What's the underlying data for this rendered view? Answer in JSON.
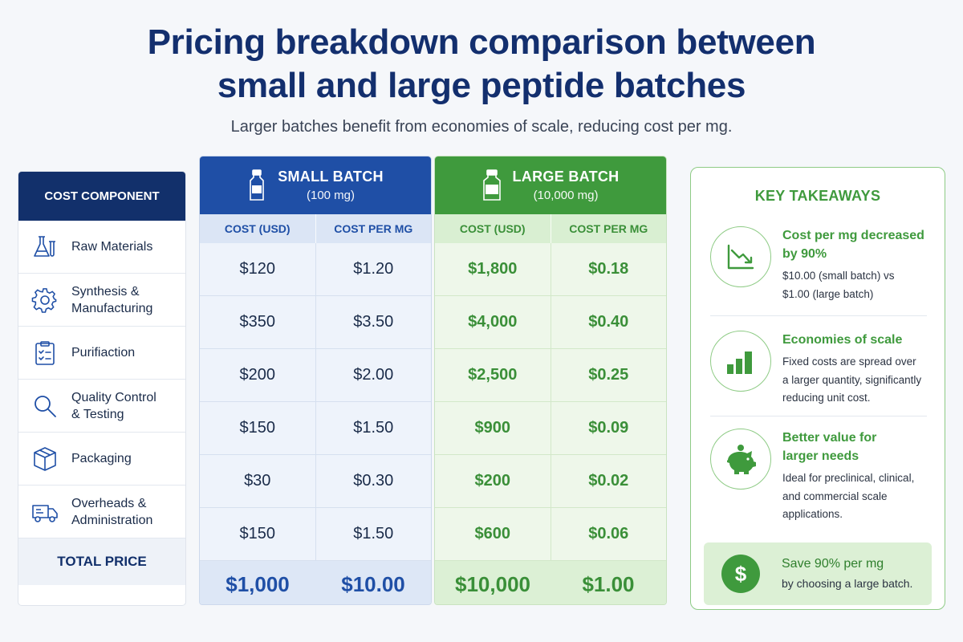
{
  "title_line1": "Pricing breakdown comparison between",
  "title_line2": "small and large peptide batches",
  "subtitle": "Larger batches benefit from economies of scale, reducing cost per mg.",
  "components": {
    "header": "COST COMPONENT",
    "items": [
      {
        "label": "Raw Materials",
        "icon": "flask-icon"
      },
      {
        "label": "Synthesis &\nManufacturing",
        "icon": "gear-icon"
      },
      {
        "label": "Purifiaction",
        "icon": "clipboard-check-icon"
      },
      {
        "label": "Quality Control\n& Testing",
        "icon": "magnifier-icon"
      },
      {
        "label": "Packaging",
        "icon": "box-icon"
      },
      {
        "label": "Overheads &\nAdministration",
        "icon": "truck-icon"
      }
    ],
    "total_label": "TOTAL PRICE"
  },
  "small_batch": {
    "name": "SMALL BATCH",
    "qty": "(100 mg)",
    "col_cost": "COST (USD)",
    "col_per_mg": "COST PER MG",
    "rows": [
      {
        "cost": "$120",
        "per_mg": "$1.20"
      },
      {
        "cost": "$350",
        "per_mg": "$3.50"
      },
      {
        "cost": "$200",
        "per_mg": "$2.00"
      },
      {
        "cost": "$150",
        "per_mg": "$1.50"
      },
      {
        "cost": "$30",
        "per_mg": "$0.30"
      },
      {
        "cost": "$150",
        "per_mg": "$1.50"
      }
    ],
    "total_cost": "$1,000",
    "total_per_mg": "$10.00",
    "color": "#1f4fa6"
  },
  "large_batch": {
    "name": "LARGE BATCH",
    "qty": "(10,000 mg)",
    "col_cost": "COST (USD)",
    "col_per_mg": "COST PER MG",
    "rows": [
      {
        "cost": "$1,800",
        "per_mg": "$0.18"
      },
      {
        "cost": "$4,000",
        "per_mg": "$0.40"
      },
      {
        "cost": "$2,500",
        "per_mg": "$0.25"
      },
      {
        "cost": "$900",
        "per_mg": "$0.09"
      },
      {
        "cost": "$200",
        "per_mg": "$0.02"
      },
      {
        "cost": "$600",
        "per_mg": "$0.06"
      }
    ],
    "total_cost": "$10,000",
    "total_per_mg": "$1.00",
    "color": "#3f9a3d"
  },
  "takeaways": {
    "title": "KEY TAKEAWAYS",
    "items": [
      {
        "head_line1": "Cost per mg decreased",
        "head_line2": "by 90%",
        "desc_line1": "$10.00 (small batch) vs",
        "desc_line2": "$1.00 (large batch)",
        "icon": "trend-down-icon"
      },
      {
        "head_line1": "Economies of scale",
        "desc_line1": "Fixed costs are spread over",
        "desc_line2": "a larger quantity, significantly",
        "desc_line3": "reducing unit cost.",
        "icon": "bar-growth-icon"
      },
      {
        "head_line1": "Better value for",
        "head_line2": "larger needs",
        "desc_line1": "Ideal for preclinical, clinical,",
        "desc_line2": "and commercial scale",
        "desc_line3": "applications.",
        "icon": "piggy-bank-icon"
      }
    ],
    "save_line1": "Save 90% per mg",
    "save_line2": "by choosing a large batch.",
    "save_icon_glyph": "$"
  }
}
